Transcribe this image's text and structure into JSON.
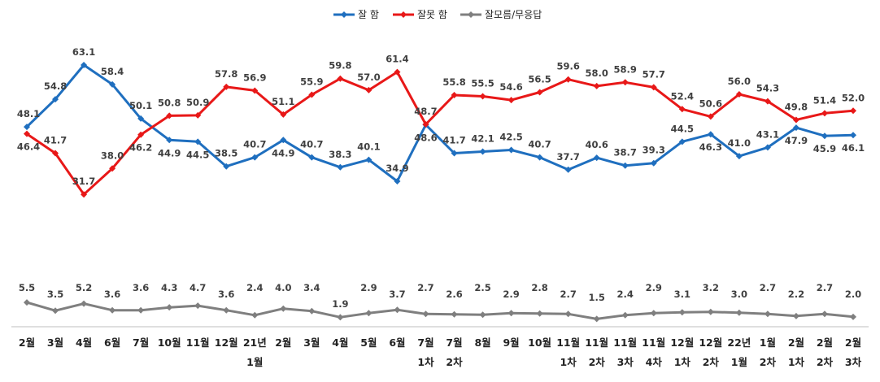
{
  "chart_data": {
    "type": "line",
    "title": "",
    "xlabel": "",
    "ylabel": "",
    "legend_position": "top-center",
    "grid": false,
    "ylim": [
      0,
      70
    ],
    "categories": [
      [
        "2월"
      ],
      [
        "3월"
      ],
      [
        "4월"
      ],
      [
        "6월"
      ],
      [
        "7월"
      ],
      [
        "10월"
      ],
      [
        "11월"
      ],
      [
        "12월"
      ],
      [
        "21년",
        "1월"
      ],
      [
        "2월"
      ],
      [
        "3월"
      ],
      [
        "4월"
      ],
      [
        "5월"
      ],
      [
        "6월"
      ],
      [
        "7월",
        "1차"
      ],
      [
        "7월",
        "2차"
      ],
      [
        "8월"
      ],
      [
        "9월"
      ],
      [
        "10월"
      ],
      [
        "11월",
        "1차"
      ],
      [
        "11월",
        "2차"
      ],
      [
        "11월",
        "3차"
      ],
      [
        "11월",
        "4차"
      ],
      [
        "12월",
        "1차"
      ],
      [
        "12월",
        "2차"
      ],
      [
        "22년",
        "1월"
      ],
      [
        "1월",
        "2차"
      ],
      [
        "2월",
        "1차"
      ],
      [
        "2월",
        "2차"
      ],
      [
        "2월",
        "3차"
      ]
    ],
    "series": [
      {
        "name": "잘 함",
        "color": "#1f6fbf",
        "values": [
          48.1,
          54.8,
          63.1,
          58.4,
          50.1,
          44.9,
          44.5,
          38.5,
          40.7,
          44.9,
          40.7,
          38.3,
          40.1,
          34.9,
          48.6,
          41.7,
          42.1,
          42.5,
          40.7,
          37.7,
          40.6,
          38.7,
          39.3,
          44.5,
          46.3,
          41.0,
          43.1,
          47.9,
          45.9,
          46.1
        ],
        "labels": [
          "48.1",
          "54.8",
          "63.1",
          "58.4",
          "50.1",
          "44.9",
          "44.5",
          "38.5",
          "40.7",
          "44.9",
          "40.7",
          "38.3",
          "40.1",
          "34.9",
          "48.6",
          "41.7",
          "42.1",
          "42.5",
          "40.7",
          "37.7",
          "40.6",
          "38.7",
          "39.3",
          "44.5",
          "46.3",
          "41.0",
          "43.1",
          "47.9",
          "45.9",
          "46.1"
        ]
      },
      {
        "name": "잘못 함",
        "color": "#e81818",
        "values": [
          46.4,
          41.7,
          31.7,
          38.0,
          46.2,
          50.8,
          50.9,
          57.8,
          56.9,
          51.1,
          55.9,
          59.8,
          57.0,
          61.4,
          48.7,
          55.8,
          55.5,
          54.6,
          56.5,
          59.6,
          58.0,
          58.9,
          57.7,
          52.4,
          50.6,
          56.0,
          54.3,
          49.8,
          51.4,
          52.0
        ],
        "labels": [
          "46.4",
          "41.7",
          "31.7",
          "38.0",
          "46.2",
          "50.8",
          "50.9",
          "57.8",
          "56.9",
          "51.1",
          "55.9",
          "59.8",
          "57.0",
          "61.4",
          "48.7",
          "55.8",
          "55.5",
          "54.6",
          "56.5",
          "59.6",
          "58.0",
          "58.9",
          "57.7",
          "52.4",
          "50.6",
          "56.0",
          "54.3",
          "49.8",
          "51.4",
          "52.0"
        ]
      },
      {
        "name": "잘모름/무응답",
        "color": "#7f7f7f",
        "values": [
          5.5,
          3.5,
          5.2,
          3.6,
          3.6,
          4.3,
          4.7,
          3.6,
          2.4,
          4.0,
          3.4,
          1.9,
          2.9,
          3.7,
          2.7,
          2.6,
          2.5,
          2.9,
          2.8,
          2.7,
          1.5,
          2.4,
          2.9,
          3.1,
          3.2,
          3.0,
          2.7,
          2.2,
          2.7,
          2.0
        ],
        "labels": [
          "5.5",
          "3.5",
          "5.2",
          "3.6",
          "3.6",
          "4.3",
          "4.7",
          "3.6",
          "2.4",
          "4.0",
          "3.4",
          "1.9",
          "2.9",
          "3.7",
          "2.7",
          "2.6",
          "2.5",
          "2.9",
          "2.8",
          "2.7",
          "1.5",
          "2.4",
          "2.9",
          "3.1",
          "3.2",
          "3.0",
          "2.7",
          "2.2",
          "2.7",
          "2.0"
        ]
      }
    ]
  }
}
